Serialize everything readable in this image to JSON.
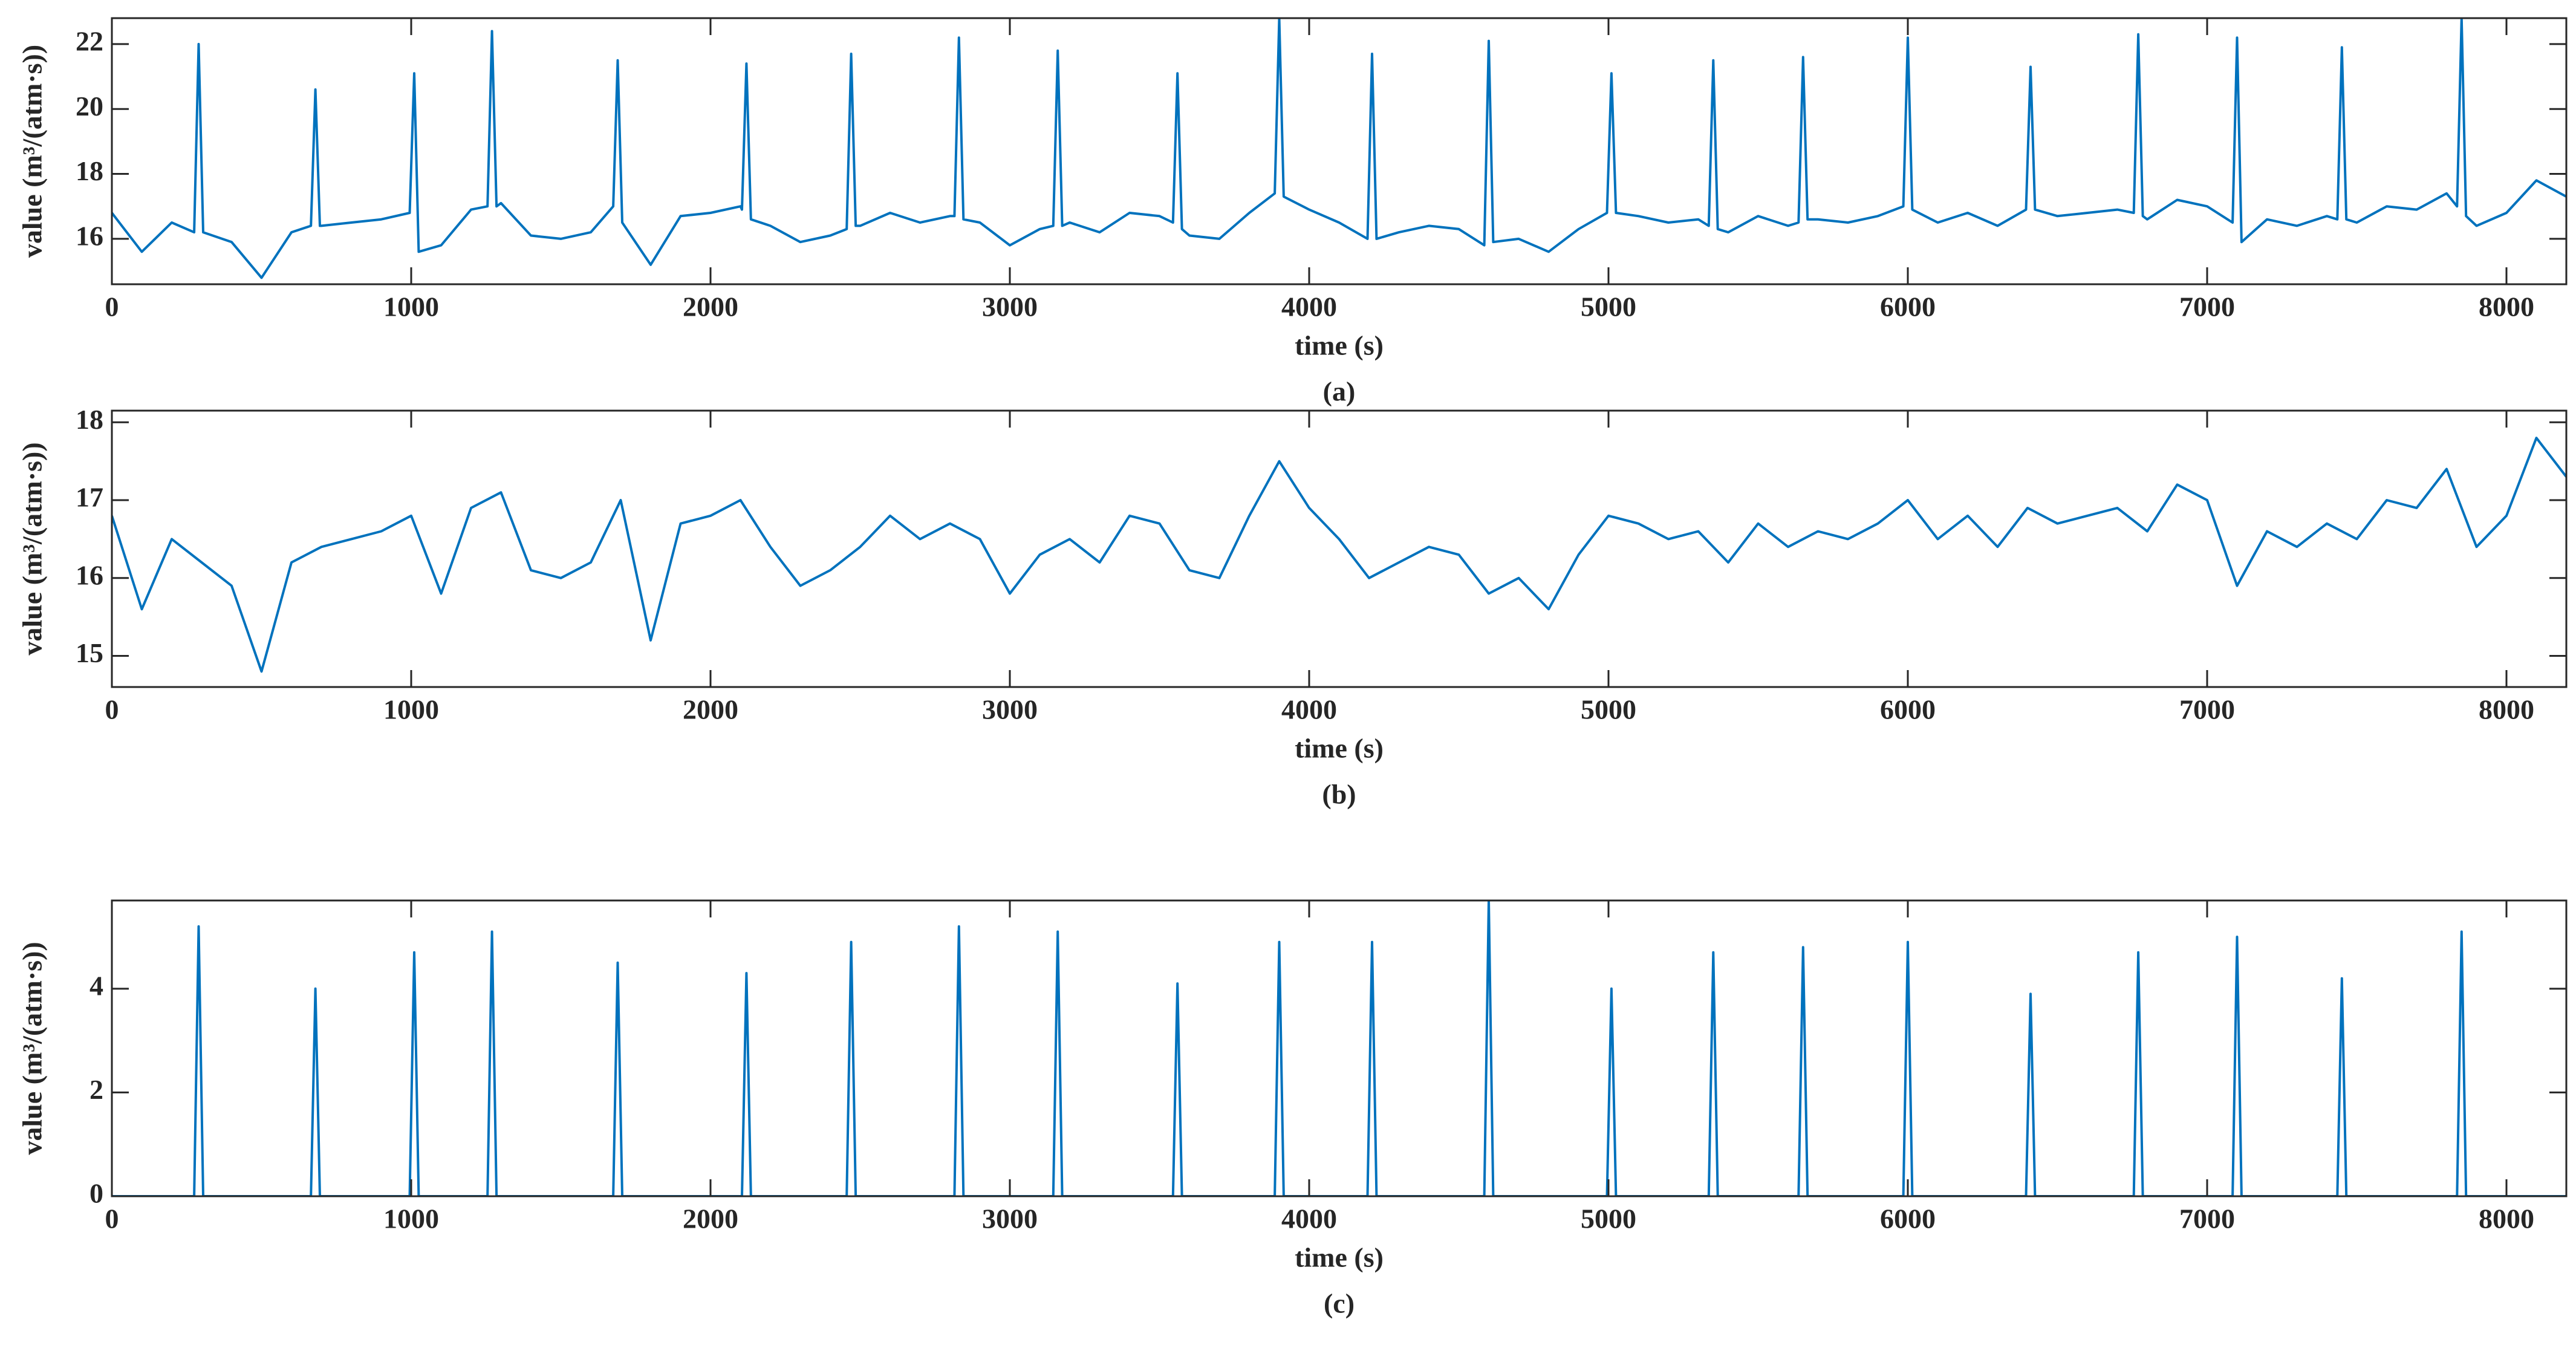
{
  "chart_data": [
    {
      "type": "line",
      "xlabel": "time (s)",
      "ylabel": "value (m³/(atm·s))",
      "caption": "(a)",
      "color": "#0072bd",
      "xlim": [
        0,
        8200
      ],
      "xticks": [
        0,
        1000,
        2000,
        3000,
        4000,
        5000,
        6000,
        7000,
        8000
      ],
      "ylim": [
        14.6,
        22.8
      ],
      "yticks": [
        16,
        18,
        20,
        22
      ],
      "x": [
        0,
        100,
        200,
        275,
        290,
        305,
        400,
        500,
        600,
        665,
        680,
        695,
        700,
        800,
        900,
        995,
        1010,
        1025,
        1100,
        1200,
        1255,
        1270,
        1285,
        1300,
        1400,
        1500,
        1600,
        1675,
        1690,
        1705,
        1800,
        1900,
        2000,
        2100,
        2105,
        2120,
        2135,
        2200,
        2300,
        2400,
        2455,
        2470,
        2485,
        2500,
        2600,
        2700,
        2800,
        2815,
        2830,
        2845,
        2900,
        3000,
        3100,
        3145,
        3160,
        3175,
        3200,
        3300,
        3400,
        3500,
        3545,
        3560,
        3575,
        3600,
        3700,
        3800,
        3885,
        3900,
        3915,
        4000,
        4100,
        4195,
        4210,
        4225,
        4300,
        4400,
        4500,
        4585,
        4600,
        4615,
        4700,
        4800,
        4900,
        4995,
        5010,
        5025,
        5100,
        5200,
        5300,
        5335,
        5350,
        5365,
        5400,
        5500,
        5600,
        5635,
        5650,
        5665,
        5700,
        5800,
        5900,
        5985,
        6000,
        6015,
        6100,
        6200,
        6300,
        6395,
        6410,
        6425,
        6500,
        6600,
        6700,
        6755,
        6770,
        6785,
        6800,
        6900,
        7000,
        7085,
        7100,
        7115,
        7200,
        7300,
        7400,
        7435,
        7450,
        7465,
        7500,
        7600,
        7700,
        7800,
        7835,
        7850,
        7865,
        7900,
        8000,
        8100,
        8200
      ],
      "values": [
        16.8,
        15.6,
        16.5,
        16.2,
        22.0,
        16.2,
        15.9,
        14.8,
        16.2,
        16.4,
        20.6,
        16.4,
        16.4,
        16.5,
        16.6,
        16.8,
        21.1,
        15.6,
        15.8,
        16.9,
        17.0,
        22.4,
        17.0,
        17.1,
        16.1,
        16.0,
        16.2,
        17.0,
        21.5,
        16.5,
        15.2,
        16.7,
        16.8,
        17.0,
        16.9,
        21.4,
        16.6,
        16.4,
        15.9,
        16.1,
        16.3,
        21.7,
        16.4,
        16.4,
        16.8,
        16.5,
        16.7,
        16.7,
        22.2,
        16.6,
        16.5,
        15.8,
        16.3,
        16.4,
        21.8,
        16.4,
        16.5,
        16.2,
        16.8,
        16.7,
        16.5,
        21.1,
        16.3,
        16.1,
        16.0,
        16.8,
        17.4,
        22.8,
        17.3,
        16.9,
        16.5,
        16.0,
        21.7,
        16.0,
        16.2,
        16.4,
        16.3,
        15.8,
        22.1,
        15.9,
        16.0,
        15.6,
        16.3,
        16.8,
        21.1,
        16.8,
        16.7,
        16.5,
        16.6,
        16.4,
        21.5,
        16.3,
        16.2,
        16.7,
        16.4,
        16.5,
        21.6,
        16.6,
        16.6,
        16.5,
        16.7,
        17.0,
        22.2,
        16.9,
        16.5,
        16.8,
        16.4,
        16.9,
        21.3,
        16.9,
        16.7,
        16.8,
        16.9,
        16.8,
        22.3,
        16.7,
        16.6,
        17.2,
        17.0,
        16.5,
        22.2,
        15.9,
        16.6,
        16.4,
        16.7,
        16.6,
        21.9,
        16.6,
        16.5,
        17.0,
        16.9,
        17.4,
        17.0,
        22.8,
        16.7,
        16.4,
        16.8,
        17.8,
        17.3
      ]
    },
    {
      "type": "line",
      "xlabel": "time (s)",
      "ylabel": "value (m³/(atm·s))",
      "caption": "(b)",
      "color": "#0072bd",
      "xlim": [
        0,
        8200
      ],
      "xticks": [
        0,
        1000,
        2000,
        3000,
        4000,
        5000,
        6000,
        7000,
        8000
      ],
      "ylim": [
        14.6,
        18.15
      ],
      "yticks": [
        15,
        16,
        17,
        18
      ],
      "x": [
        0,
        100,
        200,
        300,
        400,
        500,
        600,
        700,
        800,
        900,
        1000,
        1100,
        1200,
        1300,
        1400,
        1500,
        1600,
        1700,
        1800,
        1900,
        2000,
        2100,
        2200,
        2300,
        2400,
        2500,
        2600,
        2700,
        2800,
        2900,
        3000,
        3100,
        3200,
        3300,
        3400,
        3500,
        3600,
        3700,
        3800,
        3900,
        4000,
        4100,
        4200,
        4300,
        4400,
        4500,
        4600,
        4700,
        4800,
        4900,
        5000,
        5100,
        5200,
        5300,
        5400,
        5500,
        5600,
        5700,
        5800,
        5900,
        6000,
        6100,
        6200,
        6300,
        6400,
        6500,
        6600,
        6700,
        6800,
        6900,
        7000,
        7100,
        7200,
        7300,
        7400,
        7500,
        7600,
        7700,
        7800,
        7900,
        8000,
        8100,
        8200
      ],
      "values": [
        16.8,
        15.6,
        16.5,
        16.2,
        15.9,
        14.8,
        16.2,
        16.4,
        16.5,
        16.6,
        16.8,
        15.8,
        16.9,
        17.1,
        16.1,
        16.0,
        16.2,
        17.0,
        15.2,
        16.7,
        16.8,
        17.0,
        16.4,
        15.9,
        16.1,
        16.4,
        16.8,
        16.5,
        16.7,
        16.5,
        15.8,
        16.3,
        16.5,
        16.2,
        16.8,
        16.7,
        16.1,
        16.0,
        16.8,
        17.5,
        16.9,
        16.5,
        16.0,
        16.2,
        16.4,
        16.3,
        15.8,
        16.0,
        15.6,
        16.3,
        16.8,
        16.7,
        16.5,
        16.6,
        16.2,
        16.7,
        16.4,
        16.6,
        16.5,
        16.7,
        17.0,
        16.5,
        16.8,
        16.4,
        16.9,
        16.7,
        16.8,
        16.9,
        16.6,
        17.2,
        17.0,
        15.9,
        16.6,
        16.4,
        16.7,
        16.5,
        17.0,
        16.9,
        17.4,
        16.4,
        16.8,
        17.8,
        17.3
      ]
    },
    {
      "type": "line",
      "xlabel": "time (s)",
      "ylabel": "value (m³/(atm·s))",
      "caption": "(c)",
      "color": "#0072bd",
      "xlim": [
        0,
        8200
      ],
      "xticks": [
        0,
        1000,
        2000,
        3000,
        4000,
        5000,
        6000,
        7000,
        8000
      ],
      "ylim": [
        0,
        5.7
      ],
      "yticks": [
        0,
        2,
        4
      ],
      "x": [
        0,
        275,
        290,
        305,
        665,
        680,
        695,
        995,
        1010,
        1025,
        1255,
        1270,
        1285,
        1675,
        1690,
        1705,
        2105,
        2120,
        2135,
        2455,
        2470,
        2485,
        2815,
        2830,
        2845,
        3145,
        3160,
        3175,
        3545,
        3560,
        3575,
        3885,
        3900,
        3915,
        4195,
        4210,
        4225,
        4585,
        4600,
        4615,
        4995,
        5010,
        5025,
        5335,
        5350,
        5365,
        5635,
        5650,
        5665,
        5985,
        6000,
        6015,
        6395,
        6410,
        6425,
        6755,
        6770,
        6785,
        7085,
        7100,
        7115,
        7435,
        7450,
        7465,
        7835,
        7850,
        7865,
        8200
      ],
      "values": [
        0,
        0,
        5.2,
        0,
        0,
        4.0,
        0,
        0,
        4.7,
        0,
        0,
        5.1,
        0,
        0,
        4.5,
        0,
        0,
        4.3,
        0,
        0,
        4.9,
        0,
        0,
        5.2,
        0,
        0,
        5.1,
        0,
        0,
        4.1,
        0,
        0,
        4.9,
        0,
        0,
        4.9,
        0,
        0,
        5.7,
        0,
        0,
        4.0,
        0,
        0,
        4.7,
        0,
        0,
        4.8,
        0,
        0,
        4.9,
        0,
        0,
        3.9,
        0,
        0,
        4.7,
        0,
        0,
        5.0,
        0,
        0,
        4.2,
        0,
        0,
        5.1,
        0,
        0
      ]
    }
  ]
}
